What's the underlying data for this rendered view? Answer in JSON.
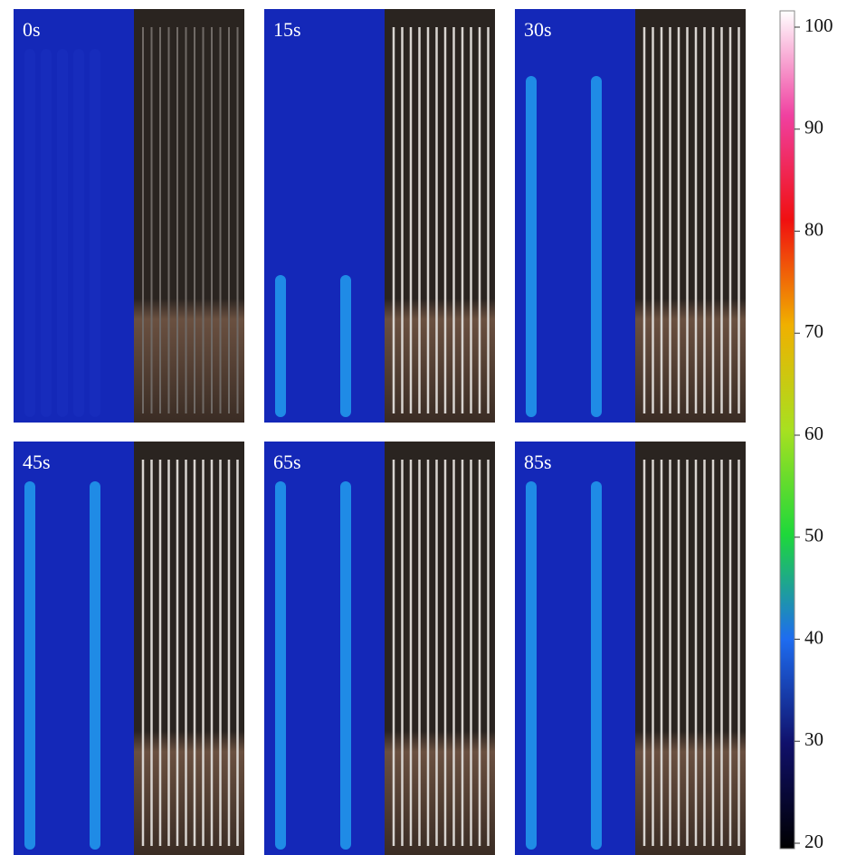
{
  "panels": [
    {
      "label": "0s"
    },
    {
      "label": "15s"
    },
    {
      "label": "30s"
    },
    {
      "label": "45s"
    },
    {
      "label": "65s"
    },
    {
      "label": "85s"
    }
  ],
  "colorbar": {
    "range": [
      20,
      100
    ],
    "ticks": [
      20,
      30,
      40,
      50,
      60,
      70,
      80,
      90,
      100
    ]
  }
}
